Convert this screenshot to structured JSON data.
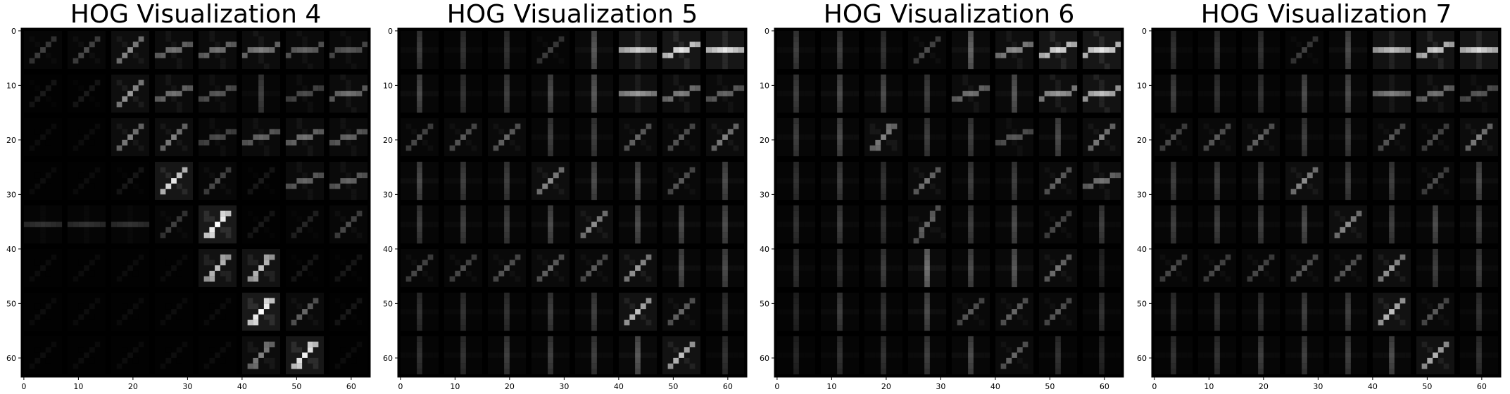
{
  "figure": {
    "background": "#ffffff",
    "axis_color": "#000000",
    "text_color": "#000000"
  },
  "chart_data": [
    {
      "type": "heatmap",
      "title": "HOG Visualization 4",
      "colormap": "gray",
      "x_ticks": [
        0,
        10,
        20,
        30,
        40,
        50,
        60
      ],
      "y_ticks": [
        0,
        10,
        20,
        30,
        40,
        50,
        60
      ],
      "xlim": [
        -0.5,
        63.5
      ],
      "ylim": [
        63.5,
        -0.5
      ],
      "grid": false,
      "cells_per_side": 8,
      "cell_size": 8,
      "cell_orientations_deg": [
        [
          -45,
          -45,
          -45,
          -20,
          -15,
          -10,
          -10,
          -10
        ],
        [
          -45,
          -45,
          -45,
          -30,
          -30,
          -90,
          -20,
          -10
        ],
        [
          -45,
          -45,
          -45,
          -45,
          -30,
          -25,
          -25,
          -20
        ],
        [
          -45,
          -45,
          -45,
          -45,
          -45,
          -45,
          -25,
          -25
        ],
        [
          0,
          0,
          0,
          -45,
          -55,
          -45,
          -45,
          -45
        ],
        [
          -45,
          -45,
          -45,
          -45,
          -55,
          -55,
          -45,
          -45
        ],
        [
          -45,
          -45,
          -45,
          -45,
          -45,
          -55,
          -45,
          -45
        ],
        [
          -45,
          -45,
          -45,
          -45,
          -45,
          -55,
          -55,
          -45
        ]
      ],
      "cell_strengths": [
        [
          0.25,
          0.3,
          0.55,
          0.45,
          0.45,
          0.5,
          0.4,
          0.35
        ],
        [
          0.1,
          0.1,
          0.6,
          0.45,
          0.35,
          0.25,
          0.3,
          0.45
        ],
        [
          0.05,
          0.05,
          0.5,
          0.5,
          0.3,
          0.4,
          0.45,
          0.4
        ],
        [
          0.05,
          0.05,
          0.1,
          0.9,
          0.3,
          0.1,
          0.4,
          0.4
        ],
        [
          0.2,
          0.2,
          0.2,
          0.25,
          1.0,
          0.1,
          0.15,
          0.3
        ],
        [
          0.05,
          0.05,
          0.05,
          0.05,
          0.75,
          0.75,
          0.1,
          0.1
        ],
        [
          0.05,
          0.05,
          0.05,
          0.05,
          0.05,
          1.0,
          0.4,
          0.1
        ],
        [
          0.05,
          0.05,
          0.05,
          0.05,
          0.05,
          0.5,
          0.95,
          0.05
        ]
      ]
    },
    {
      "type": "heatmap",
      "title": "HOG Visualization 5",
      "colormap": "gray",
      "x_ticks": [
        0,
        10,
        20,
        30,
        40,
        50,
        60
      ],
      "y_ticks": [
        0,
        10,
        20,
        30,
        40,
        50,
        60
      ],
      "xlim": [
        -0.5,
        63.5
      ],
      "ylim": [
        63.5,
        -0.5
      ],
      "grid": false,
      "cells_per_side": 8,
      "cell_size": 8,
      "cell_orientations_deg": [
        [
          -90,
          -90,
          -90,
          -45,
          -90,
          0,
          -15,
          0
        ],
        [
          -90,
          -90,
          -90,
          -90,
          -90,
          0,
          -30,
          -30
        ],
        [
          -45,
          -45,
          -45,
          -90,
          -90,
          -45,
          -45,
          -45
        ],
        [
          -90,
          -90,
          -90,
          -45,
          -90,
          -90,
          -45,
          -90
        ],
        [
          -90,
          -90,
          -90,
          -90,
          -45,
          -90,
          -90,
          -90
        ],
        [
          -45,
          -45,
          -45,
          -45,
          -45,
          -45,
          -90,
          -90
        ],
        [
          -90,
          -90,
          -90,
          -90,
          -90,
          -45,
          -45,
          -90
        ],
        [
          -90,
          -90,
          -90,
          -90,
          -90,
          -90,
          -45,
          -90
        ]
      ],
      "cell_strengths": [
        [
          0.25,
          0.2,
          0.2,
          0.25,
          0.35,
          0.8,
          0.9,
          0.9
        ],
        [
          0.3,
          0.2,
          0.25,
          0.3,
          0.35,
          0.6,
          0.5,
          0.4
        ],
        [
          0.3,
          0.35,
          0.4,
          0.25,
          0.25,
          0.4,
          0.35,
          0.5
        ],
        [
          0.3,
          0.25,
          0.25,
          0.55,
          0.3,
          0.3,
          0.35,
          0.3
        ],
        [
          0.25,
          0.25,
          0.25,
          0.3,
          0.55,
          0.3,
          0.3,
          0.3
        ],
        [
          0.3,
          0.3,
          0.35,
          0.4,
          0.35,
          0.6,
          0.3,
          0.3
        ],
        [
          0.2,
          0.2,
          0.2,
          0.25,
          0.25,
          0.75,
          0.4,
          0.2
        ],
        [
          0.2,
          0.2,
          0.25,
          0.25,
          0.25,
          0.35,
          0.75,
          0.2
        ]
      ]
    },
    {
      "type": "heatmap",
      "title": "HOG Visualization 6",
      "colormap": "gray",
      "x_ticks": [
        0,
        10,
        20,
        30,
        40,
        50,
        60
      ],
      "y_ticks": [
        0,
        10,
        20,
        30,
        40,
        50,
        60
      ],
      "xlim": [
        -0.5,
        63.5
      ],
      "ylim": [
        63.5,
        -0.5
      ],
      "grid": false,
      "cells_per_side": 8,
      "cell_size": 8,
      "cell_orientations_deg": [
        [
          -90,
          -90,
          -90,
          -45,
          -90,
          -20,
          -20,
          -10
        ],
        [
          -90,
          -90,
          -90,
          -90,
          -30,
          -90,
          -10,
          -10
        ],
        [
          -90,
          -90,
          -55,
          -90,
          -90,
          -20,
          -90,
          -45
        ],
        [
          -90,
          -90,
          -90,
          -45,
          -90,
          -90,
          -45,
          -20
        ],
        [
          -90,
          -90,
          -90,
          -60,
          -90,
          -90,
          -45,
          -90
        ],
        [
          -90,
          -90,
          -90,
          -90,
          -90,
          -90,
          -45,
          -90
        ],
        [
          -90,
          -90,
          -90,
          -90,
          -45,
          -45,
          -45,
          -90
        ],
        [
          -90,
          -90,
          -90,
          -90,
          -90,
          -45,
          -90,
          -90
        ]
      ],
      "cell_strengths": [
        [
          0.25,
          0.25,
          0.2,
          0.3,
          0.4,
          0.55,
          0.85,
          0.9
        ],
        [
          0.25,
          0.3,
          0.3,
          0.25,
          0.45,
          0.35,
          0.6,
          0.75
        ],
        [
          0.25,
          0.3,
          0.5,
          0.25,
          0.25,
          0.35,
          0.3,
          0.5
        ],
        [
          0.2,
          0.25,
          0.2,
          0.45,
          0.25,
          0.25,
          0.4,
          0.45
        ],
        [
          0.2,
          0.25,
          0.2,
          0.4,
          0.25,
          0.3,
          0.3,
          0.25
        ],
        [
          0.2,
          0.2,
          0.25,
          0.45,
          0.3,
          0.35,
          0.45,
          0.15
        ],
        [
          0.15,
          0.25,
          0.2,
          0.3,
          0.35,
          0.4,
          0.35,
          0.2
        ],
        [
          0.15,
          0.2,
          0.2,
          0.25,
          0.3,
          0.4,
          0.2,
          0.15
        ]
      ]
    },
    {
      "type": "heatmap",
      "title": "HOG Visualization 7",
      "colormap": "gray",
      "x_ticks": [
        0,
        10,
        20,
        30,
        40,
        50,
        60
      ],
      "y_ticks": [
        0,
        10,
        20,
        30,
        40,
        50,
        60
      ],
      "xlim": [
        -0.5,
        63.5
      ],
      "ylim": [
        63.5,
        -0.5
      ],
      "grid": false,
      "cells_per_side": 8,
      "cell_size": 8,
      "cell_orientations_deg": [
        [
          -90,
          -90,
          -90,
          -45,
          -90,
          0,
          -15,
          0
        ],
        [
          -90,
          -90,
          -90,
          -90,
          -90,
          0,
          -30,
          -30
        ],
        [
          -45,
          -45,
          -45,
          -90,
          -90,
          -45,
          -45,
          -45
        ],
        [
          -90,
          -90,
          -90,
          -45,
          -90,
          -90,
          -45,
          -90
        ],
        [
          -90,
          -90,
          -90,
          -90,
          -45,
          -90,
          -90,
          -90
        ],
        [
          -45,
          -45,
          -45,
          -45,
          -45,
          -45,
          -90,
          -90
        ],
        [
          -90,
          -90,
          -90,
          -90,
          -90,
          -45,
          -45,
          -90
        ],
        [
          -90,
          -90,
          -90,
          -90,
          -90,
          -90,
          -45,
          -90
        ]
      ],
      "cell_strengths": [
        [
          0.2,
          0.2,
          0.2,
          0.25,
          0.3,
          0.75,
          0.8,
          0.85
        ],
        [
          0.25,
          0.2,
          0.2,
          0.3,
          0.3,
          0.5,
          0.45,
          0.35
        ],
        [
          0.3,
          0.35,
          0.4,
          0.25,
          0.25,
          0.35,
          0.3,
          0.5
        ],
        [
          0.25,
          0.25,
          0.25,
          0.55,
          0.25,
          0.25,
          0.3,
          0.3
        ],
        [
          0.25,
          0.25,
          0.25,
          0.3,
          0.55,
          0.25,
          0.3,
          0.25
        ],
        [
          0.3,
          0.3,
          0.3,
          0.35,
          0.35,
          0.6,
          0.25,
          0.25
        ],
        [
          0.2,
          0.2,
          0.2,
          0.25,
          0.25,
          0.75,
          0.35,
          0.2
        ],
        [
          0.2,
          0.2,
          0.25,
          0.25,
          0.25,
          0.3,
          0.7,
          0.2
        ]
      ]
    }
  ]
}
